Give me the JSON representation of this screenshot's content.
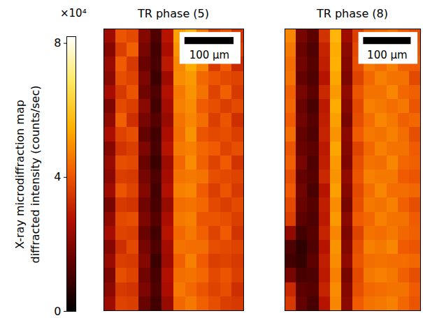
{
  "chart_data": {
    "type": "heatmap",
    "colorbar": {
      "label": [
        "X-ray microdiffraction map",
        "diffracted intensity (counts/sec)"
      ],
      "multiplier": "×10⁴",
      "range": [
        0,
        8.2
      ],
      "ticks": [
        0,
        4,
        8
      ]
    },
    "panels": [
      {
        "title": "TR phase (5)",
        "xlim": [
          0,
          285
        ],
        "ylim": [
          0,
          580
        ],
        "scale_bar": {
          "length": 100,
          "label": "100 µm"
        },
        "cells": [
          [
            2.4,
            4.0,
            3.8,
            2.0,
            1.2,
            2.8,
            5.2,
            5.6,
            4.6,
            3.6,
            4.0,
            3.4
          ],
          [
            2.0,
            3.6,
            4.2,
            1.8,
            1.0,
            2.6,
            5.0,
            5.8,
            4.4,
            3.9,
            3.7,
            3.6
          ],
          [
            2.3,
            4.1,
            3.5,
            1.6,
            1.1,
            2.9,
            4.8,
            5.4,
            4.8,
            3.5,
            4.1,
            3.2
          ],
          [
            2.1,
            3.9,
            3.7,
            1.9,
            0.9,
            2.4,
            4.9,
            5.1,
            4.3,
            4.0,
            3.8,
            3.7
          ],
          [
            2.5,
            3.5,
            4.0,
            1.7,
            1.2,
            2.7,
            4.6,
            5.0,
            4.5,
            3.7,
            4.2,
            3.5
          ],
          [
            1.9,
            3.8,
            3.6,
            2.1,
            1.0,
            2.5,
            4.7,
            4.9,
            4.1,
            3.9,
            3.6,
            3.8
          ],
          [
            2.2,
            4.2,
            3.3,
            1.8,
            1.3,
            2.3,
            4.5,
            4.8,
            4.4,
            3.6,
            4.0,
            3.3
          ],
          [
            2.6,
            3.7,
            3.9,
            1.5,
            1.0,
            2.6,
            4.4,
            5.0,
            4.0,
            3.8,
            3.9,
            3.6
          ],
          [
            2.0,
            3.4,
            3.6,
            1.9,
            1.1,
            2.8,
            4.6,
            4.7,
            4.3,
            4.1,
            3.7,
            3.9
          ],
          [
            2.3,
            3.9,
            3.8,
            1.6,
            0.9,
            2.4,
            4.3,
            4.9,
            4.2,
            3.7,
            4.1,
            3.4
          ],
          [
            2.1,
            3.6,
            3.5,
            1.8,
            1.2,
            2.5,
            4.5,
            4.6,
            4.5,
            3.9,
            3.8,
            3.7
          ],
          [
            2.4,
            4.0,
            3.7,
            2.0,
            1.0,
            2.7,
            4.7,
            4.8,
            4.1,
            3.6,
            4.0,
            3.5
          ],
          [
            1.8,
            3.5,
            3.4,
            1.7,
            1.1,
            2.3,
            4.4,
            4.5,
            4.3,
            3.8,
            3.6,
            3.8
          ],
          [
            2.2,
            3.8,
            3.9,
            1.9,
            1.3,
            2.6,
            4.6,
            4.7,
            4.0,
            4.0,
            3.9,
            3.6
          ],
          [
            2.5,
            3.7,
            3.6,
            1.6,
            1.0,
            2.8,
            4.3,
            4.6,
            4.2,
            3.7,
            4.1,
            3.4
          ],
          [
            2.0,
            3.3,
            3.8,
            1.8,
            1.2,
            2.5,
            4.5,
            4.4,
            4.4,
            3.9,
            3.8,
            3.7
          ],
          [
            2.3,
            3.6,
            3.5,
            2.0,
            0.9,
            2.4,
            4.2,
            4.7,
            4.1,
            3.6,
            3.7,
            3.5
          ],
          [
            1.9,
            3.9,
            3.7,
            1.7,
            1.1,
            2.7,
            4.4,
            4.5,
            4.3,
            3.8,
            4.0,
            3.6
          ],
          [
            2.1,
            3.5,
            3.4,
            1.9,
            1.2,
            2.6,
            4.6,
            4.3,
            4.0,
            3.7,
            3.9,
            3.3
          ],
          [
            2.4,
            3.7,
            3.6,
            1.6,
            1.0,
            2.3,
            4.3,
            4.6,
            4.2,
            3.9,
            3.6,
            3.5
          ]
        ]
      },
      {
        "title": "TR phase (8)",
        "xlim": [
          0,
          285
        ],
        "ylim": [
          0,
          580
        ],
        "scale_bar": {
          "length": 100,
          "label": "100 µm"
        },
        "cells": [
          [
            4.8,
            1.8,
            1.4,
            3.4,
            5.6,
            2.4,
            3.6,
            4.2,
            4.3,
            4.5,
            4.1,
            3.9
          ],
          [
            4.6,
            1.6,
            1.2,
            3.1,
            5.4,
            2.1,
            3.8,
            4.4,
            4.6,
            4.3,
            4.4,
            4.0
          ],
          [
            4.4,
            1.7,
            1.3,
            3.0,
            5.5,
            2.0,
            3.9,
            4.6,
            4.4,
            4.7,
            4.2,
            4.1
          ],
          [
            4.5,
            1.5,
            1.2,
            2.8,
            5.3,
            1.9,
            3.7,
            4.3,
            4.7,
            4.5,
            4.5,
            3.8
          ],
          [
            4.2,
            1.8,
            1.4,
            3.2,
            5.1,
            2.2,
            4.0,
            4.5,
            4.5,
            4.8,
            4.3,
            4.2
          ],
          [
            4.3,
            1.6,
            1.1,
            2.9,
            5.4,
            2.0,
            3.8,
            4.7,
            4.6,
            4.4,
            4.6,
            4.0
          ],
          [
            4.1,
            1.7,
            1.3,
            3.0,
            5.2,
            1.8,
            3.9,
            4.4,
            4.8,
            4.6,
            4.2,
            4.3
          ],
          [
            4.4,
            1.5,
            1.2,
            3.1,
            5.0,
            2.1,
            4.1,
            4.6,
            4.5,
            4.7,
            4.4,
            3.9
          ],
          [
            4.0,
            1.6,
            1.4,
            2.9,
            5.3,
            2.0,
            3.7,
            4.3,
            4.7,
            4.5,
            4.5,
            4.1
          ],
          [
            4.2,
            1.8,
            1.2,
            3.0,
            5.1,
            1.9,
            3.9,
            4.5,
            4.4,
            4.8,
            4.3,
            4.2
          ],
          [
            3.9,
            1.5,
            1.3,
            3.2,
            5.0,
            2.2,
            4.0,
            4.7,
            4.6,
            4.6,
            4.1,
            4.0
          ],
          [
            4.1,
            1.7,
            1.1,
            2.8,
            5.2,
            2.0,
            3.8,
            4.4,
            4.8,
            4.4,
            4.4,
            4.3
          ],
          [
            3.8,
            1.6,
            1.3,
            3.0,
            4.9,
            1.8,
            3.9,
            4.6,
            4.5,
            4.7,
            4.2,
            3.9
          ],
          [
            3.6,
            1.4,
            1.2,
            2.9,
            5.1,
            2.1,
            4.1,
            4.3,
            4.7,
            4.5,
            4.5,
            4.1
          ],
          [
            2.2,
            1.0,
            1.3,
            3.1,
            4.8,
            1.9,
            3.7,
            4.5,
            4.4,
            4.6,
            4.3,
            4.2
          ],
          [
            1.2,
            0.7,
            1.2,
            2.8,
            5.0,
            2.0,
            3.9,
            4.7,
            4.6,
            4.8,
            4.1,
            4.0
          ],
          [
            1.0,
            0.8,
            1.4,
            3.0,
            4.9,
            2.2,
            4.0,
            4.4,
            4.5,
            4.4,
            4.4,
            4.3
          ],
          [
            1.8,
            1.1,
            1.2,
            2.9,
            4.7,
            1.8,
            3.8,
            4.6,
            4.7,
            4.6,
            4.2,
            3.9
          ],
          [
            3.2,
            1.4,
            1.3,
            3.1,
            4.9,
            2.0,
            3.9,
            4.3,
            4.4,
            4.5,
            4.5,
            4.1
          ],
          [
            3.5,
            1.5,
            1.1,
            2.8,
            4.8,
            2.1,
            4.1,
            4.5,
            4.6,
            4.7,
            4.3,
            4.0
          ]
        ]
      }
    ]
  }
}
